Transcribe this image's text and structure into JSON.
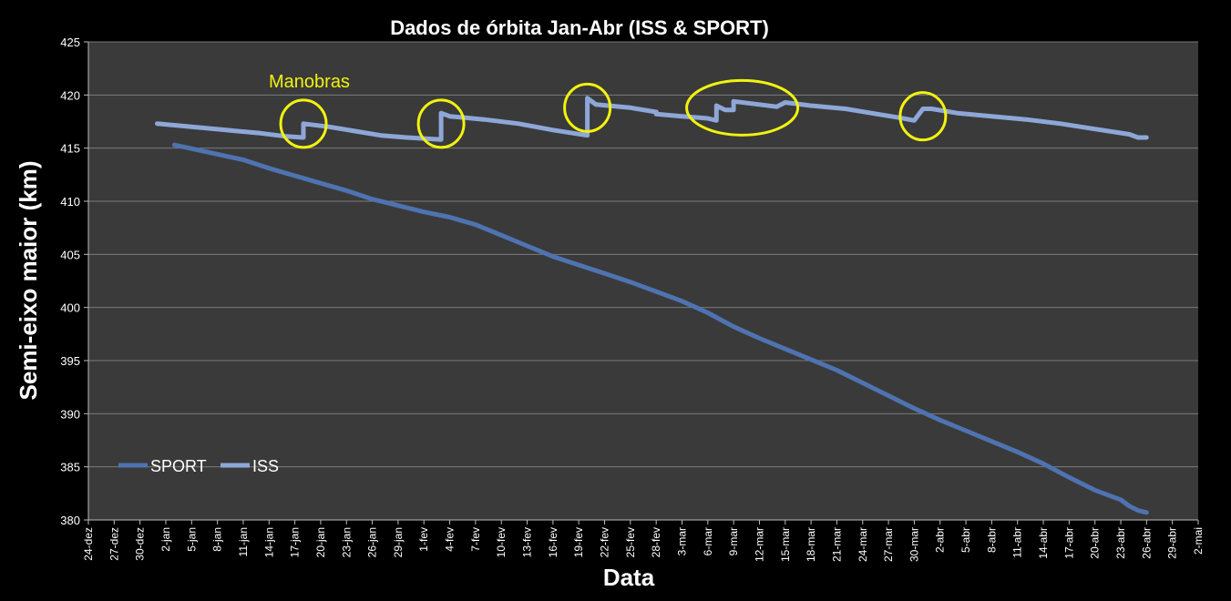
{
  "chart_data": {
    "type": "line",
    "title": "Dados de órbita Jan-Abr (ISS & SPORT)",
    "xlabel": "Data",
    "ylabel": "Semi-eixo maior (km)",
    "ylim": [
      380,
      425
    ],
    "yticks": [
      380,
      385,
      390,
      395,
      400,
      405,
      410,
      415,
      420,
      425
    ],
    "xlim": [
      "24-dez",
      "2-mai"
    ],
    "xticks": [
      "24-dez",
      "27-dez",
      "30-dez",
      "2-jan",
      "5-jan",
      "8-jan",
      "11-jan",
      "14-jan",
      "17-jan",
      "20-jan",
      "23-jan",
      "26-jan",
      "29-jan",
      "1-fev",
      "4-fev",
      "7-fev",
      "10-fev",
      "13-fev",
      "16-fev",
      "19-fev",
      "22-fev",
      "25-fev",
      "28-fev",
      "3-mar",
      "6-mar",
      "9-mar",
      "12-mar",
      "15-mar",
      "18-mar",
      "21-mar",
      "24-mar",
      "27-mar",
      "30-mar",
      "2-abr",
      "5-abr",
      "8-abr",
      "11-abr",
      "14-abr",
      "17-abr",
      "20-abr",
      "23-abr",
      "26-abr",
      "29-abr",
      "2-mai"
    ],
    "grid": true,
    "legend_position": "bottom-left",
    "background": "#3a3a3a",
    "series": [
      {
        "name": "SPORT",
        "color": "#4f73b1",
        "points": [
          [
            "3-jan",
            415.3
          ],
          [
            "7-jan",
            414.6
          ],
          [
            "11-jan",
            413.9
          ],
          [
            "14-jan",
            413.1
          ],
          [
            "17-jan",
            412.4
          ],
          [
            "20-jan",
            411.7
          ],
          [
            "23-jan",
            411.0
          ],
          [
            "26-jan",
            410.2
          ],
          [
            "29-jan",
            409.6
          ],
          [
            "1-fev",
            409.0
          ],
          [
            "4-fev",
            408.5
          ],
          [
            "7-fev",
            407.8
          ],
          [
            "10-fev",
            406.8
          ],
          [
            "13-fev",
            405.8
          ],
          [
            "16-fev",
            404.8
          ],
          [
            "19-fev",
            404.0
          ],
          [
            "22-fev",
            403.2
          ],
          [
            "25-fev",
            402.4
          ],
          [
            "28-fev",
            401.5
          ],
          [
            "3-mar",
            400.6
          ],
          [
            "6-mar",
            399.5
          ],
          [
            "9-mar",
            398.2
          ],
          [
            "12-mar",
            397.1
          ],
          [
            "15-mar",
            396.1
          ],
          [
            "18-mar",
            395.1
          ],
          [
            "21-mar",
            394.1
          ],
          [
            "24-mar",
            392.9
          ],
          [
            "27-mar",
            391.7
          ],
          [
            "30-mar",
            390.5
          ],
          [
            "2-abr",
            389.4
          ],
          [
            "5-abr",
            388.4
          ],
          [
            "8-abr",
            387.4
          ],
          [
            "11-abr",
            386.4
          ],
          [
            "14-abr",
            385.3
          ],
          [
            "17-abr",
            384.0
          ],
          [
            "20-abr",
            382.8
          ],
          [
            "23-abr",
            381.9
          ],
          [
            "24-abr",
            381.3
          ],
          [
            "25-abr",
            380.9
          ],
          [
            "26-abr",
            380.7
          ]
        ]
      },
      {
        "name": "ISS",
        "color": "#8ea7d8",
        "points": [
          [
            "1-jan",
            417.3
          ],
          [
            "5-jan",
            417.0
          ],
          [
            "9-jan",
            416.7
          ],
          [
            "13-jan",
            416.4
          ],
          [
            "16-jan",
            416.1
          ],
          [
            "18-jan",
            416.0
          ],
          [
            "18-jan",
            417.3
          ],
          [
            "21-jan",
            417.0
          ],
          [
            "24-jan",
            416.6
          ],
          [
            "27-jan",
            416.2
          ],
          [
            "30-jan",
            416.0
          ],
          [
            "3-fev",
            415.8
          ],
          [
            "3-fev",
            418.3
          ],
          [
            "4-fev",
            418.0
          ],
          [
            "8-fev",
            417.7
          ],
          [
            "12-fev",
            417.3
          ],
          [
            "16-fev",
            416.7
          ],
          [
            "20-fev",
            416.2
          ],
          [
            "20-fev",
            419.7
          ],
          [
            "21-fev",
            419.1
          ],
          [
            "25-fev",
            418.8
          ],
          [
            "28-fev",
            418.4
          ],
          [
            "28-fev",
            418.2
          ],
          [
            "3-mar",
            418.0
          ],
          [
            "6-mar",
            417.8
          ],
          [
            "7-mar",
            417.6
          ],
          [
            "7-mar",
            419.0
          ],
          [
            "8-mar",
            418.6
          ],
          [
            "9-mar",
            418.6
          ],
          [
            "9-mar",
            419.4
          ],
          [
            "12-mar",
            419.1
          ],
          [
            "14-mar",
            418.9
          ],
          [
            "15-mar",
            419.3
          ],
          [
            "18-mar",
            419.0
          ],
          [
            "22-mar",
            418.7
          ],
          [
            "25-mar",
            418.3
          ],
          [
            "28-mar",
            417.9
          ],
          [
            "30-mar",
            417.6
          ],
          [
            "31-mar",
            418.7
          ],
          [
            "1-abr",
            418.7
          ],
          [
            "4-abr",
            418.3
          ],
          [
            "8-abr",
            418.0
          ],
          [
            "12-abr",
            417.7
          ],
          [
            "16-abr",
            417.3
          ],
          [
            "20-abr",
            416.8
          ],
          [
            "24-abr",
            416.3
          ],
          [
            "25-abr",
            416.0
          ],
          [
            "26-abr",
            416.0
          ]
        ]
      }
    ],
    "annotations": [
      {
        "text": "Manobras",
        "color": "#f2f210"
      }
    ],
    "highlight_circles": [
      {
        "center": [
          "18-jan",
          417.3
        ],
        "color": "#f2f210"
      },
      {
        "center": [
          "3-fev",
          417.3
        ],
        "color": "#f2f210"
      },
      {
        "center": [
          "20-fev",
          418.8
        ],
        "color": "#f2f210"
      },
      {
        "center": [
          "10-mar",
          418.8
        ],
        "color": "#f2f210"
      },
      {
        "center": [
          "31-mar",
          418.0
        ],
        "color": "#f2f210"
      }
    ]
  }
}
